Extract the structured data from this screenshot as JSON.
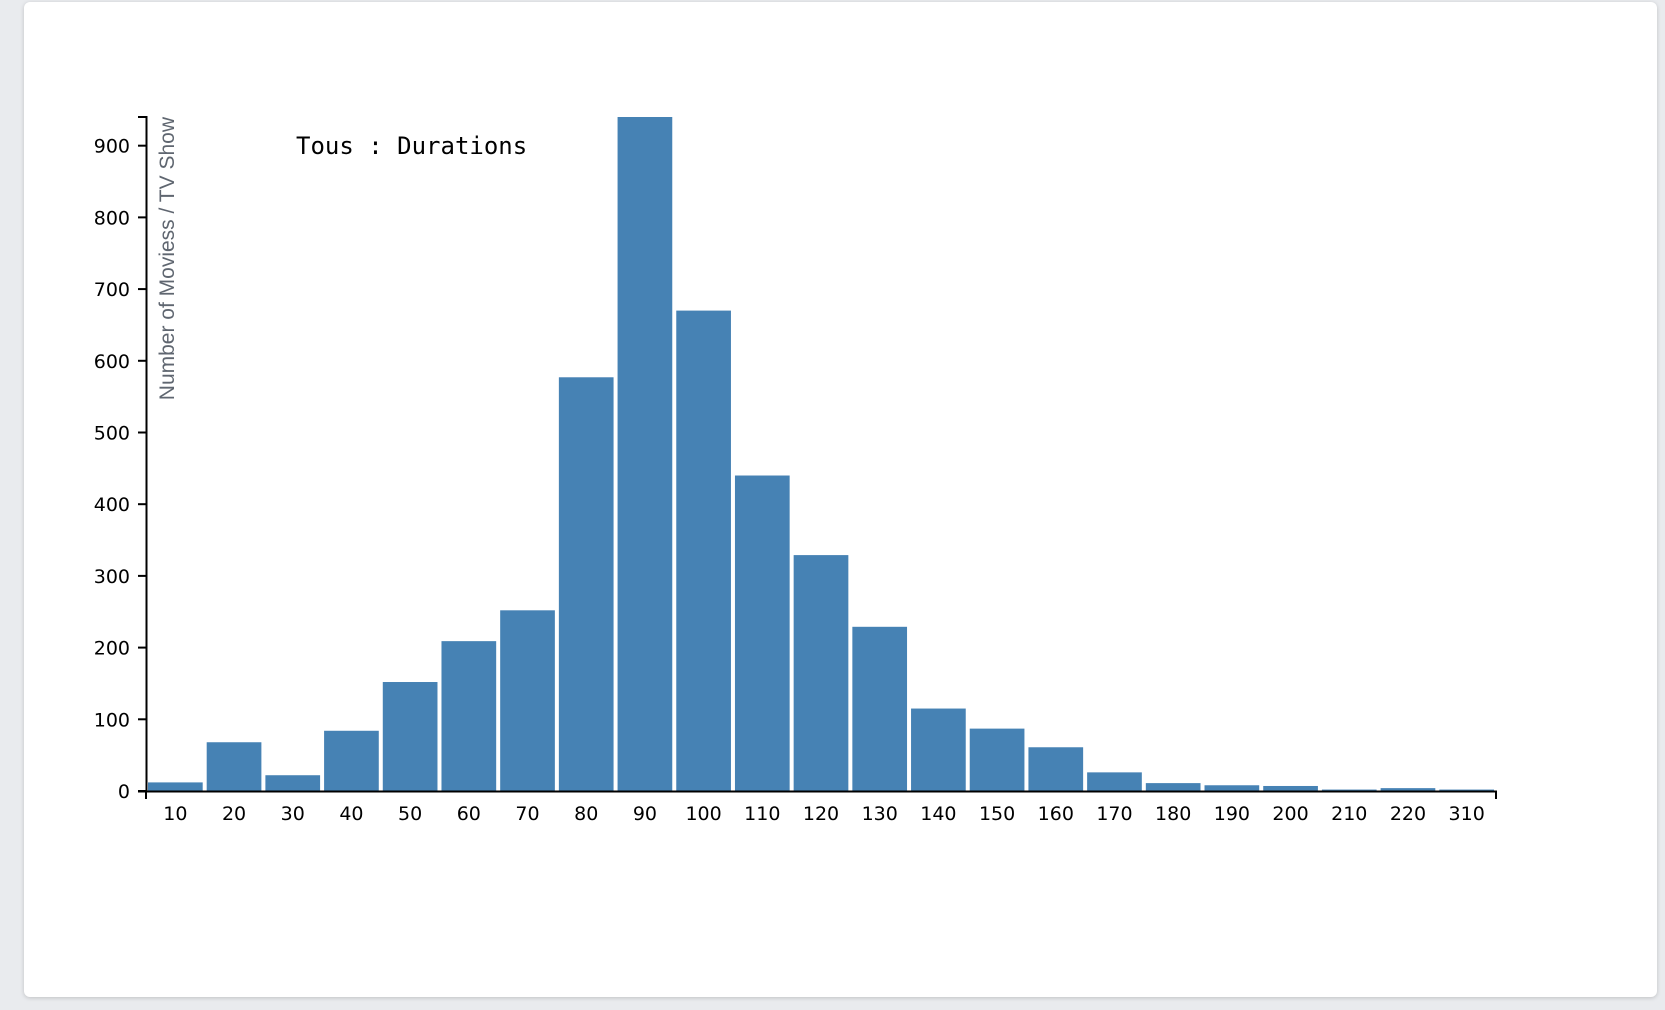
{
  "chart_data": {
    "type": "bar",
    "title": "Tous : Durations",
    "xlabel": "",
    "ylabel": "Number of Moviess / TV Show",
    "categories": [
      "10",
      "20",
      "30",
      "40",
      "50",
      "60",
      "70",
      "80",
      "90",
      "100",
      "110",
      "120",
      "130",
      "140",
      "150",
      "160",
      "170",
      "180",
      "190",
      "200",
      "210",
      "220",
      "310"
    ],
    "values": [
      12,
      68,
      22,
      84,
      152,
      209,
      252,
      577,
      940,
      670,
      440,
      329,
      229,
      115,
      87,
      61,
      26,
      11,
      8,
      7,
      2,
      4,
      2
    ],
    "ylim": [
      0,
      940
    ],
    "yticks": [
      0,
      100,
      200,
      300,
      400,
      500,
      600,
      700,
      800,
      900
    ],
    "bar_color": "#4682b4",
    "grid": false
  }
}
